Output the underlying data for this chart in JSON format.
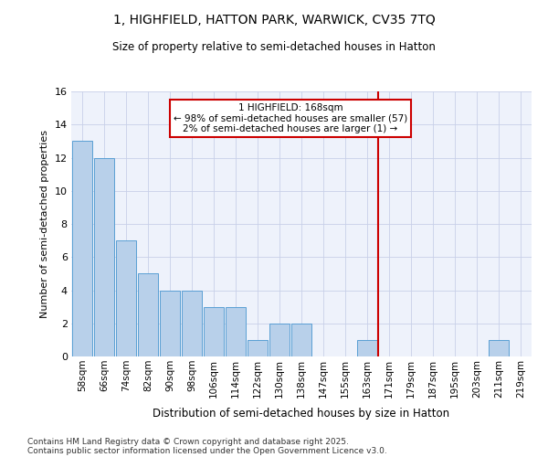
{
  "title": "1, HIGHFIELD, HATTON PARK, WARWICK, CV35 7TQ",
  "subtitle": "Size of property relative to semi-detached houses in Hatton",
  "xlabel": "Distribution of semi-detached houses by size in Hatton",
  "ylabel": "Number of semi-detached properties",
  "bar_color": "#b8d0ea",
  "bar_edge_color": "#5a9fd4",
  "background_color": "#eef2fb",
  "grid_color": "#c8d0e8",
  "categories": [
    "58sqm",
    "66sqm",
    "74sqm",
    "82sqm",
    "90sqm",
    "98sqm",
    "106sqm",
    "114sqm",
    "122sqm",
    "130sqm",
    "138sqm",
    "147sqm",
    "155sqm",
    "163sqm",
    "171sqm",
    "179sqm",
    "187sqm",
    "195sqm",
    "203sqm",
    "211sqm",
    "219sqm"
  ],
  "values": [
    13,
    12,
    7,
    5,
    4,
    4,
    3,
    3,
    1,
    2,
    2,
    0,
    0,
    1,
    0,
    0,
    0,
    0,
    0,
    1,
    0
  ],
  "ylim": [
    0,
    16
  ],
  "yticks": [
    0,
    2,
    4,
    6,
    8,
    10,
    12,
    14,
    16
  ],
  "annotation_text": "1 HIGHFIELD: 168sqm\n← 98% of semi-detached houses are smaller (57)\n2% of semi-detached houses are larger (1) →",
  "annotation_box_color": "#ffffff",
  "annotation_box_edge": "#cc0000",
  "footnote1": "Contains HM Land Registry data © Crown copyright and database right 2025.",
  "footnote2": "Contains public sector information licensed under the Open Government Licence v3.0."
}
